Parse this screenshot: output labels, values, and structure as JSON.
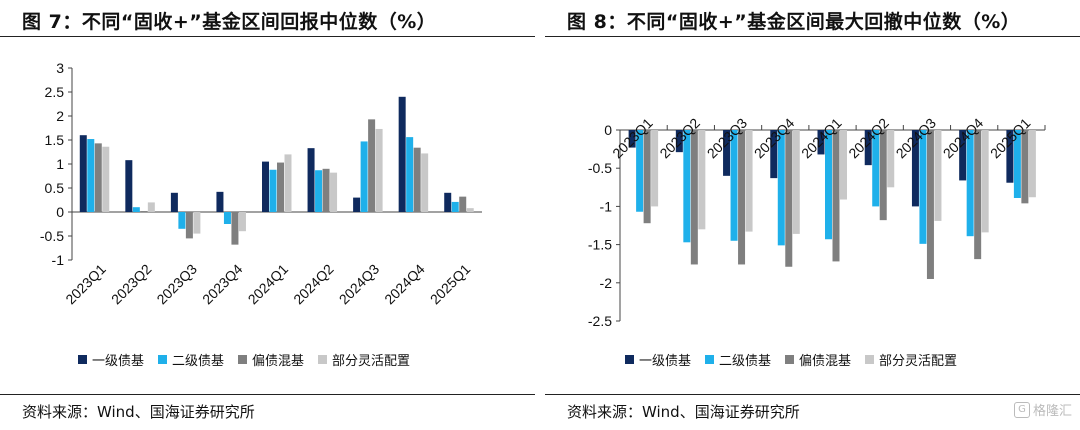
{
  "colors": [
    "#0f2a5e",
    "#1fb0ea",
    "#7f7f7f",
    "#c8c8c8"
  ],
  "watermark": {
    "text": "格隆汇",
    "icon": "gelonghui-logo-icon"
  },
  "left": {
    "title": "图 7：不同“固收+”基金区间回报中位数（%）",
    "source": "资料来源：Wind、国海证券研究所"
  },
  "right": {
    "title": "图 8：不同“固收+”基金区间最大回撤中位数（%）",
    "source": "资料来源：Wind、国海证券研究所"
  },
  "chart_data": [
    {
      "type": "bar",
      "categories": [
        "2023Q1",
        "2023Q2",
        "2023Q3",
        "2023Q4",
        "2024Q1",
        "2024Q2",
        "2024Q3",
        "2024Q4",
        "2025Q1"
      ],
      "series": [
        {
          "name": "一级债基",
          "values": [
            1.6,
            1.08,
            0.4,
            0.42,
            1.05,
            1.33,
            0.3,
            2.4,
            0.4
          ]
        },
        {
          "name": "二级债基",
          "values": [
            1.52,
            0.1,
            -0.35,
            -0.25,
            0.88,
            0.87,
            1.47,
            1.56,
            0.21
          ]
        },
        {
          "name": "偏债混基",
          "values": [
            1.43,
            0.02,
            -0.55,
            -0.68,
            1.03,
            0.9,
            1.93,
            1.34,
            0.32
          ]
        },
        {
          "name": "部分灵活配置",
          "values": [
            1.36,
            0.2,
            -0.45,
            -0.4,
            1.2,
            0.82,
            1.73,
            1.22,
            0.08
          ]
        }
      ],
      "ylim": [
        -1,
        3
      ],
      "yticks": [
        "3",
        "2.5",
        "2",
        "1.5",
        "1",
        "0.5",
        "0",
        "-0.5",
        "-1"
      ],
      "legend": "bottom"
    },
    {
      "type": "bar",
      "categories": [
        "2023Q1",
        "2023Q2",
        "2023Q3",
        "2023Q4",
        "2024Q1",
        "2024Q2",
        "2024Q3",
        "2024Q4",
        "2025Q1"
      ],
      "series": [
        {
          "name": "一级债基",
          "values": [
            -0.23,
            -0.29,
            -0.6,
            -0.63,
            -0.32,
            -0.46,
            -1.0,
            -0.66,
            -0.69
          ]
        },
        {
          "name": "二级债基",
          "values": [
            -1.07,
            -1.47,
            -1.45,
            -1.51,
            -1.43,
            -1.0,
            -1.49,
            -1.39,
            -0.89
          ]
        },
        {
          "name": "偏债混基",
          "values": [
            -1.22,
            -1.76,
            -1.76,
            -1.79,
            -1.72,
            -1.18,
            -1.95,
            -1.69,
            -0.96
          ]
        },
        {
          "name": "部分灵活配置",
          "values": [
            -1.0,
            -1.3,
            -1.33,
            -1.36,
            -0.91,
            -0.75,
            -1.19,
            -1.34,
            -0.88
          ]
        }
      ],
      "ylim": [
        -2.5,
        0
      ],
      "yticks": [
        "0",
        "-0.5",
        "-1",
        "-1.5",
        "-2",
        "-2.5"
      ],
      "legend": "bottom"
    }
  ]
}
